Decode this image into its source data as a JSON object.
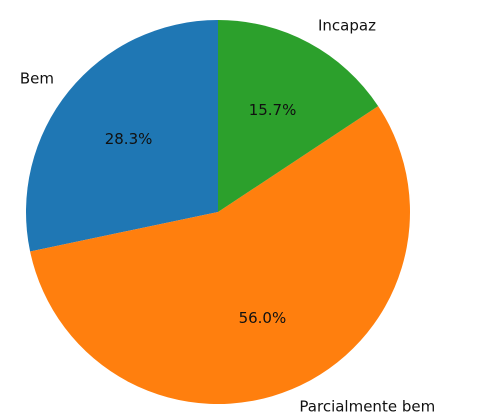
{
  "chart_data": {
    "type": "pie",
    "categories": [
      "Bem",
      "Parcialmente bem",
      "Incapaz"
    ],
    "values": [
      28.3,
      56.0,
      15.7
    ],
    "value_labels": [
      "28.3%",
      "56.0%",
      "15.7%"
    ],
    "colors": [
      "#1f77b4",
      "#ff7f0e",
      "#2ca02c"
    ]
  }
}
